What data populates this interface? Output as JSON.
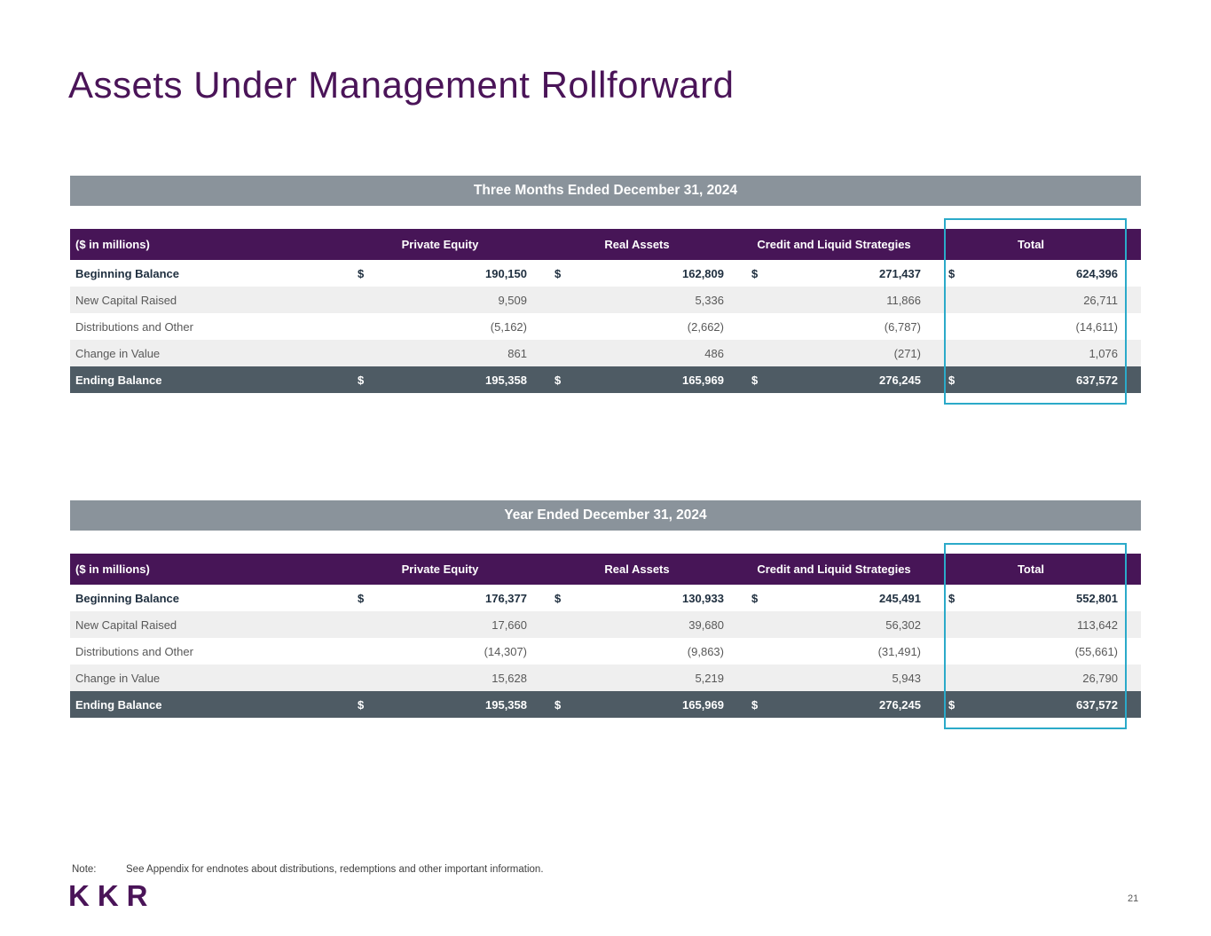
{
  "currency": "$",
  "slide": {
    "title": "Assets Under Management Rollforward",
    "note_label": "Note:",
    "note_text": "See Appendix for endnotes about distributions, redemptions and other important information.",
    "logo": "KKR",
    "page_number": "21"
  },
  "colors": {
    "brand_purple": "#4A1458",
    "header_purple": "#471557",
    "band_gray": "#8A939B",
    "ending_row_slate": "#4E5B64",
    "alt_row_gray": "#EFEFEF",
    "highlight_teal": "#2BAAC9"
  },
  "tables": [
    {
      "band_title": "Three Months Ended December 31, 2024",
      "unit_label": "($ in millions)",
      "columns": [
        "Private Equity",
        "Real Assets",
        "Credit and Liquid Strategies",
        "Total"
      ],
      "rows": [
        {
          "label": "Beginning Balance",
          "values": [
            "190,150",
            "162,809",
            "271,437",
            "624,396"
          ]
        },
        {
          "label": "New Capital Raised",
          "values": [
            "9,509",
            "5,336",
            "11,866",
            "26,711"
          ]
        },
        {
          "label": "Distributions and Other",
          "values": [
            "(5,162)",
            "(2,662)",
            "(6,787)",
            "(14,611)"
          ]
        },
        {
          "label": "Change in Value",
          "values": [
            "861",
            "486",
            "(271)",
            "1,076"
          ]
        },
        {
          "label": "Ending Balance",
          "values": [
            "195,358",
            "165,969",
            "276,245",
            "637,572"
          ]
        }
      ]
    },
    {
      "band_title": "Year Ended December 31, 2024",
      "unit_label": "($ in millions)",
      "columns": [
        "Private Equity",
        "Real Assets",
        "Credit and Liquid Strategies",
        "Total"
      ],
      "rows": [
        {
          "label": "Beginning Balance",
          "values": [
            "176,377",
            "130,933",
            "245,491",
            "552,801"
          ]
        },
        {
          "label": "New Capital Raised",
          "values": [
            "17,660",
            "39,680",
            "56,302",
            "113,642"
          ]
        },
        {
          "label": "Distributions and Other",
          "values": [
            "(14,307)",
            "(9,863)",
            "(31,491)",
            "(55,661)"
          ]
        },
        {
          "label": "Change in Value",
          "values": [
            "15,628",
            "5,219",
            "5,943",
            "26,790"
          ]
        },
        {
          "label": "Ending Balance",
          "values": [
            "195,358",
            "165,969",
            "276,245",
            "637,572"
          ]
        }
      ]
    }
  ]
}
